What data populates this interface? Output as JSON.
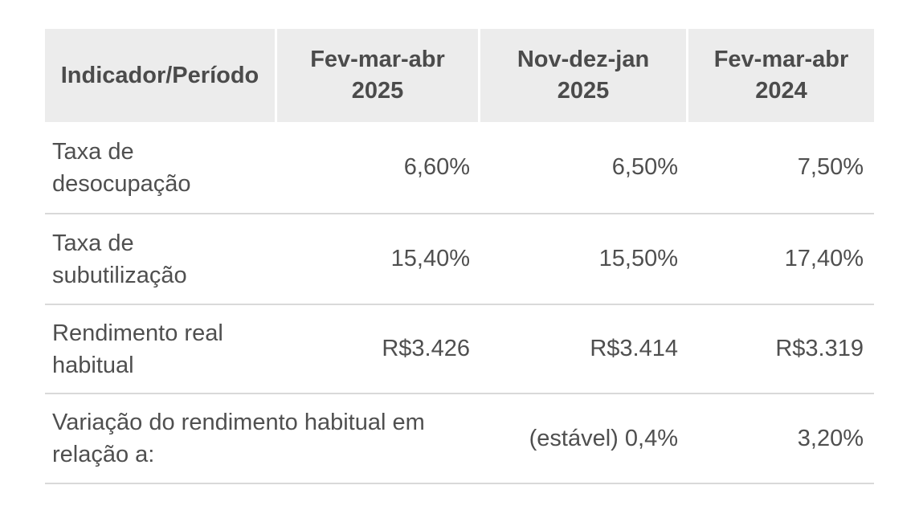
{
  "table": {
    "header": [
      {
        "line1": "Indicador/Período",
        "line2": ""
      },
      {
        "line1": "Fev-mar-abr",
        "line2": "2025"
      },
      {
        "line1": "Nov-dez-jan",
        "line2": "2025"
      },
      {
        "line1": "Fev-mar-abr",
        "line2": "2024"
      }
    ],
    "rows": [
      {
        "label_line1": "Taxa de",
        "label_line2": "desocupação",
        "values": [
          "6,60%",
          "6,50%",
          "7,50%"
        ]
      },
      {
        "label_line1": "Taxa de",
        "label_line2": "subutilização",
        "values": [
          "15,40%",
          "15,50%",
          "17,40%"
        ]
      },
      {
        "label_line1": "Rendimento real",
        "label_line2": "habitual",
        "values": [
          "R$3.426",
          "R$3.414",
          "R$3.319"
        ]
      },
      {
        "label_line1": "Variação do rendimento habitual em",
        "label_line2": "relação a:",
        "label_colspan": 2,
        "values": [
          "",
          "(estável) 0,4%",
          "3,20%"
        ]
      }
    ],
    "colors": {
      "header_bg": "#ececec",
      "header_text": "#4b4b4b",
      "body_text": "#4f4f4f",
      "separator": "#d9d9d9",
      "page_bg": "#ffffff"
    }
  }
}
